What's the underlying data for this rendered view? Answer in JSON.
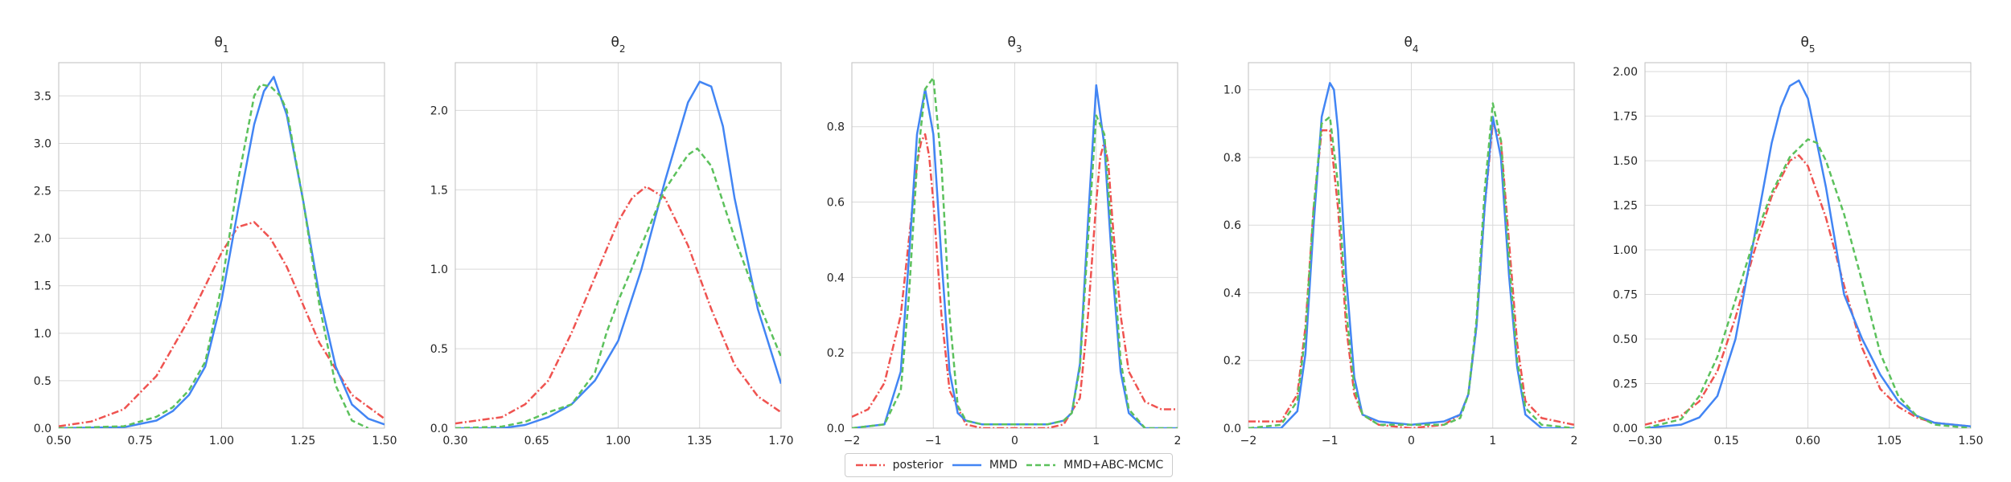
{
  "chart_data": [
    {
      "type": "line",
      "title_base": "θ",
      "title_sub": "1",
      "xlim": [
        0.5,
        1.5
      ],
      "ylim": [
        0,
        3.85
      ],
      "x_ticks": [
        0.5,
        0.75,
        1.0,
        1.25,
        1.5
      ],
      "x_tick_labels": [
        "0.50",
        "0.75",
        "1.00",
        "1.25",
        "1.50"
      ],
      "y_ticks": [
        0,
        0.5,
        1.0,
        1.5,
        2.0,
        2.5,
        3.0,
        3.5
      ],
      "y_tick_labels": [
        "0.0",
        "0.5",
        "1.0",
        "1.5",
        "2.0",
        "2.5",
        "3.0",
        "3.5"
      ],
      "series": [
        {
          "name": "posterior",
          "x": [
            0.5,
            0.6,
            0.7,
            0.8,
            0.9,
            1.0,
            1.05,
            1.1,
            1.15,
            1.2,
            1.3,
            1.4,
            1.5
          ],
          "y": [
            0.02,
            0.07,
            0.2,
            0.55,
            1.15,
            1.85,
            2.12,
            2.17,
            2.0,
            1.7,
            0.9,
            0.35,
            0.1
          ]
        },
        {
          "name": "MMD",
          "x": [
            0.5,
            0.7,
            0.8,
            0.85,
            0.9,
            0.95,
            1.0,
            1.05,
            1.1,
            1.13,
            1.16,
            1.2,
            1.25,
            1.3,
            1.35,
            1.4,
            1.45,
            1.5
          ],
          "y": [
            0.0,
            0.01,
            0.08,
            0.18,
            0.35,
            0.65,
            1.35,
            2.3,
            3.2,
            3.55,
            3.7,
            3.3,
            2.4,
            1.4,
            0.65,
            0.25,
            0.1,
            0.04
          ]
        },
        {
          "name": "MMD+ABC-MCMC",
          "x": [
            0.5,
            0.7,
            0.8,
            0.85,
            0.9,
            0.95,
            1.0,
            1.05,
            1.1,
            1.12,
            1.15,
            1.18,
            1.2,
            1.25,
            1.3,
            1.35,
            1.4,
            1.45
          ],
          "y": [
            0.0,
            0.02,
            0.12,
            0.22,
            0.4,
            0.7,
            1.5,
            2.6,
            3.5,
            3.62,
            3.6,
            3.5,
            3.35,
            2.4,
            1.3,
            0.45,
            0.08,
            0.0
          ]
        }
      ]
    },
    {
      "type": "line",
      "title_base": "θ",
      "title_sub": "2",
      "xlim": [
        0.3,
        1.7
      ],
      "ylim": [
        0,
        2.3
      ],
      "x_ticks": [
        0.3,
        0.65,
        1.0,
        1.35,
        1.7
      ],
      "x_tick_labels": [
        "0.30",
        "0.65",
        "1.00",
        "1.35",
        "1.70"
      ],
      "y_ticks": [
        0,
        0.5,
        1.0,
        1.5,
        2.0
      ],
      "y_tick_labels": [
        "0.0",
        "0.5",
        "1.0",
        "1.5",
        "2.0"
      ],
      "series": [
        {
          "name": "posterior",
          "x": [
            0.3,
            0.5,
            0.6,
            0.7,
            0.8,
            0.9,
            1.0,
            1.06,
            1.12,
            1.2,
            1.3,
            1.4,
            1.5,
            1.6,
            1.7
          ],
          "y": [
            0.03,
            0.07,
            0.15,
            0.3,
            0.6,
            0.95,
            1.3,
            1.45,
            1.52,
            1.45,
            1.15,
            0.75,
            0.4,
            0.2,
            0.1
          ]
        },
        {
          "name": "MMD",
          "x": [
            0.3,
            0.5,
            0.6,
            0.7,
            0.8,
            0.9,
            1.0,
            1.1,
            1.2,
            1.3,
            1.35,
            1.4,
            1.45,
            1.5,
            1.6,
            1.7
          ],
          "y": [
            0.0,
            0.0,
            0.02,
            0.07,
            0.15,
            0.3,
            0.55,
            1.0,
            1.55,
            2.05,
            2.18,
            2.15,
            1.9,
            1.45,
            0.75,
            0.28
          ]
        },
        {
          "name": "MMD+ABC-MCMC",
          "x": [
            0.3,
            0.5,
            0.6,
            0.7,
            0.8,
            0.9,
            0.95,
            1.0,
            1.1,
            1.2,
            1.3,
            1.34,
            1.4,
            1.5,
            1.6,
            1.7
          ],
          "y": [
            0.0,
            0.01,
            0.04,
            0.1,
            0.15,
            0.35,
            0.6,
            0.8,
            1.15,
            1.5,
            1.72,
            1.76,
            1.65,
            1.2,
            0.8,
            0.45
          ]
        }
      ]
    },
    {
      "type": "line",
      "title_base": "θ",
      "title_sub": "3",
      "xlim": [
        -2,
        2
      ],
      "ylim": [
        0,
        0.97
      ],
      "x_ticks": [
        -2,
        -1,
        0,
        1,
        2
      ],
      "x_tick_labels": [
        "−2",
        "−1",
        "0",
        "1",
        "2"
      ],
      "y_ticks": [
        0,
        0.2,
        0.4,
        0.6,
        0.8
      ],
      "y_tick_labels": [
        "0.0",
        "0.2",
        "0.4",
        "0.6",
        "0.8"
      ],
      "series": [
        {
          "name": "posterior",
          "x": [
            -2,
            -1.8,
            -1.6,
            -1.4,
            -1.3,
            -1.2,
            -1.15,
            -1.1,
            -1.05,
            -1.0,
            -0.9,
            -0.8,
            -0.6,
            -0.4,
            0,
            0.4,
            0.6,
            0.8,
            0.9,
            1.0,
            1.05,
            1.1,
            1.15,
            1.2,
            1.3,
            1.4,
            1.6,
            1.8,
            2
          ],
          "y": [
            0.03,
            0.05,
            0.12,
            0.3,
            0.5,
            0.7,
            0.76,
            0.78,
            0.72,
            0.6,
            0.3,
            0.1,
            0.01,
            0.0,
            0.0,
            0.0,
            0.01,
            0.08,
            0.3,
            0.6,
            0.72,
            0.76,
            0.7,
            0.55,
            0.3,
            0.15,
            0.07,
            0.05,
            0.05
          ]
        },
        {
          "name": "MMD",
          "x": [
            -2,
            -1.6,
            -1.4,
            -1.3,
            -1.2,
            -1.1,
            -1.0,
            -0.9,
            -0.8,
            -0.7,
            -0.6,
            -0.4,
            0,
            0.4,
            0.6,
            0.7,
            0.8,
            0.9,
            1.0,
            1.1,
            1.2,
            1.3,
            1.4,
            1.6,
            2
          ],
          "y": [
            0.0,
            0.01,
            0.15,
            0.45,
            0.78,
            0.9,
            0.78,
            0.45,
            0.15,
            0.04,
            0.02,
            0.01,
            0.01,
            0.01,
            0.02,
            0.04,
            0.17,
            0.55,
            0.91,
            0.75,
            0.42,
            0.15,
            0.04,
            0.0,
            0.0
          ]
        },
        {
          "name": "MMD+ABC-MCMC",
          "x": [
            -2,
            -1.6,
            -1.4,
            -1.3,
            -1.2,
            -1.1,
            -1.0,
            -0.9,
            -0.8,
            -0.7,
            -0.6,
            -0.4,
            0,
            0.4,
            0.6,
            0.7,
            0.8,
            0.9,
            1.0,
            1.1,
            1.2,
            1.3,
            1.4,
            1.6,
            2
          ],
          "y": [
            0.0,
            0.01,
            0.1,
            0.35,
            0.7,
            0.9,
            0.93,
            0.7,
            0.3,
            0.06,
            0.02,
            0.01,
            0.01,
            0.01,
            0.02,
            0.04,
            0.16,
            0.5,
            0.83,
            0.78,
            0.48,
            0.18,
            0.05,
            0.0,
            0.0
          ]
        }
      ]
    },
    {
      "type": "line",
      "title_base": "θ",
      "title_sub": "4",
      "xlim": [
        -2,
        2
      ],
      "ylim": [
        0,
        1.08
      ],
      "x_ticks": [
        -2,
        -1,
        0,
        1,
        2
      ],
      "x_tick_labels": [
        "−2",
        "−1",
        "0",
        "1",
        "2"
      ],
      "y_ticks": [
        0,
        0.2,
        0.4,
        0.6,
        0.8,
        1.0
      ],
      "y_tick_labels": [
        "0.0",
        "0.2",
        "0.4",
        "0.6",
        "0.8",
        "1.0"
      ],
      "series": [
        {
          "name": "posterior",
          "x": [
            -2,
            -1.6,
            -1.4,
            -1.3,
            -1.2,
            -1.1,
            -1.0,
            -0.9,
            -0.8,
            -0.7,
            -0.6,
            -0.4,
            0,
            0.4,
            0.6,
            0.7,
            0.8,
            0.9,
            1.0,
            1.1,
            1.2,
            1.3,
            1.4,
            1.6,
            2
          ],
          "y": [
            0.02,
            0.02,
            0.1,
            0.3,
            0.65,
            0.88,
            0.88,
            0.65,
            0.3,
            0.1,
            0.04,
            0.01,
            0.0,
            0.01,
            0.04,
            0.1,
            0.3,
            0.65,
            0.9,
            0.85,
            0.55,
            0.25,
            0.08,
            0.03,
            0.01
          ]
        },
        {
          "name": "MMD",
          "x": [
            -2,
            -1.6,
            -1.4,
            -1.3,
            -1.2,
            -1.1,
            -1.0,
            -0.95,
            -0.9,
            -0.8,
            -0.7,
            -0.6,
            -0.4,
            0,
            0.4,
            0.6,
            0.7,
            0.8,
            0.9,
            1.0,
            1.1,
            1.2,
            1.3,
            1.4,
            1.6,
            2
          ],
          "y": [
            0.0,
            0.0,
            0.05,
            0.22,
            0.6,
            0.92,
            1.02,
            1.0,
            0.88,
            0.45,
            0.15,
            0.04,
            0.02,
            0.01,
            0.02,
            0.04,
            0.1,
            0.3,
            0.65,
            0.92,
            0.8,
            0.45,
            0.18,
            0.04,
            0.0,
            0.0
          ]
        },
        {
          "name": "MMD+ABC-MCMC",
          "x": [
            -2,
            -1.6,
            -1.4,
            -1.3,
            -1.2,
            -1.1,
            -1.0,
            -0.9,
            -0.8,
            -0.7,
            -0.6,
            -0.4,
            0,
            0.4,
            0.6,
            0.7,
            0.8,
            0.9,
            1.0,
            1.1,
            1.2,
            1.3,
            1.4,
            1.6,
            2
          ],
          "y": [
            0.0,
            0.01,
            0.08,
            0.28,
            0.65,
            0.9,
            0.92,
            0.72,
            0.35,
            0.12,
            0.04,
            0.01,
            0.01,
            0.01,
            0.03,
            0.1,
            0.32,
            0.7,
            0.96,
            0.85,
            0.5,
            0.2,
            0.06,
            0.01,
            0.0
          ]
        }
      ]
    },
    {
      "type": "line",
      "title_base": "θ",
      "title_sub": "5",
      "xlim": [
        -0.3,
        1.5
      ],
      "ylim": [
        0,
        2.05
      ],
      "x_ticks": [
        -0.3,
        0.15,
        0.6,
        1.05,
        1.5
      ],
      "x_tick_labels": [
        "−0.30",
        "0.15",
        "0.60",
        "1.05",
        "1.50"
      ],
      "y_ticks": [
        0,
        0.25,
        0.5,
        0.75,
        1.0,
        1.25,
        1.5,
        1.75,
        2.0
      ],
      "y_tick_labels": [
        "0.00",
        "0.25",
        "0.50",
        "0.75",
        "1.00",
        "1.25",
        "1.50",
        "1.75",
        "2.00"
      ],
      "series": [
        {
          "name": "posterior",
          "x": [
            -0.3,
            -0.1,
            0.0,
            0.1,
            0.2,
            0.3,
            0.4,
            0.5,
            0.55,
            0.6,
            0.7,
            0.8,
            0.9,
            1.0,
            1.1,
            1.2,
            1.3,
            1.5
          ],
          "y": [
            0.02,
            0.07,
            0.15,
            0.32,
            0.62,
            0.98,
            1.3,
            1.5,
            1.53,
            1.47,
            1.18,
            0.8,
            0.45,
            0.22,
            0.12,
            0.06,
            0.03,
            0.01
          ]
        },
        {
          "name": "MMD",
          "x": [
            -0.3,
            -0.1,
            0.0,
            0.1,
            0.2,
            0.3,
            0.4,
            0.45,
            0.5,
            0.55,
            0.6,
            0.7,
            0.8,
            0.9,
            1.0,
            1.1,
            1.2,
            1.3,
            1.5
          ],
          "y": [
            0.0,
            0.02,
            0.06,
            0.18,
            0.5,
            1.05,
            1.6,
            1.8,
            1.92,
            1.95,
            1.85,
            1.35,
            0.75,
            0.5,
            0.3,
            0.15,
            0.07,
            0.03,
            0.01
          ]
        },
        {
          "name": "MMD+ABC-MCMC",
          "x": [
            -0.3,
            -0.1,
            0.0,
            0.1,
            0.2,
            0.3,
            0.4,
            0.5,
            0.6,
            0.65,
            0.7,
            0.8,
            0.9,
            1.0,
            1.1,
            1.2,
            1.3,
            1.5
          ],
          "y": [
            0.0,
            0.05,
            0.18,
            0.4,
            0.72,
            1.05,
            1.32,
            1.52,
            1.62,
            1.6,
            1.5,
            1.2,
            0.82,
            0.42,
            0.18,
            0.07,
            0.02,
            0.0
          ]
        }
      ]
    }
  ],
  "legend": {
    "placement": "bottom-center",
    "items": [
      {
        "label": "posterior",
        "color": "#ef5350",
        "dash": "dash-dot"
      },
      {
        "label": "MMD",
        "color": "#4285f4",
        "dash": "solid"
      },
      {
        "label": "MMD+ABC-MCMC",
        "color": "#5cc15c",
        "dash": "dashed"
      }
    ]
  },
  "style": {
    "grid": true,
    "grid_color": "#d9d9d9",
    "axes_color": "#bfbfbf",
    "text_color": "#262626",
    "series_colors": {
      "posterior": "#ef5350",
      "MMD": "#4285f4",
      "MMD+ABC-MCMC": "#5cc15c"
    },
    "series_dash": {
      "posterior": "dash-dot",
      "MMD": "solid",
      "MMD+ABC-MCMC": "dashed"
    }
  }
}
